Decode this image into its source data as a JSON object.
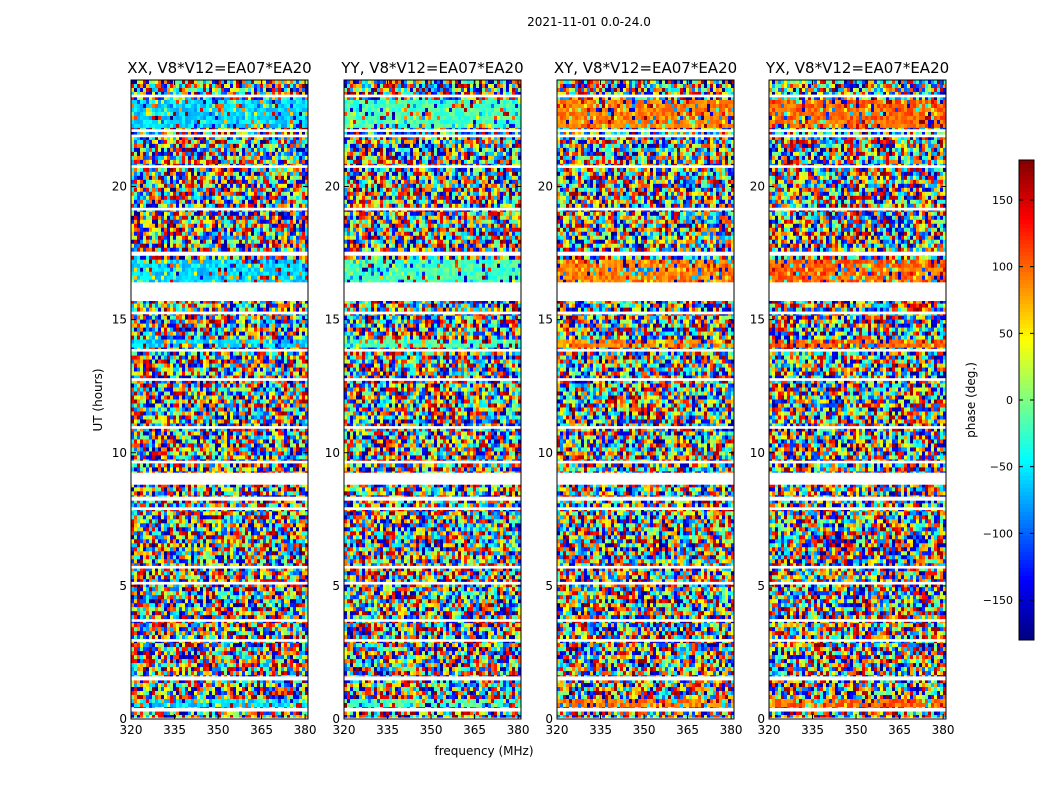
{
  "figure_title": "2021-11-01 0.0-24.0",
  "chart_data": [
    {
      "type": "heatmap",
      "title": "XX, V8*V12=EA07*EA20",
      "xlabel": "frequency (MHz)",
      "ylabel": "UT (hours)",
      "xlim": [
        320,
        381
      ],
      "ylim": [
        0,
        24
      ],
      "x_ticks": [
        320,
        335,
        350,
        365,
        380
      ],
      "y_ticks": [
        0,
        5,
        10,
        15,
        20
      ],
      "dominant_phase_deg": -60
    },
    {
      "type": "heatmap",
      "title": "YY, V8*V12=EA07*EA20",
      "xlabel": "frequency (MHz)",
      "ylabel": "",
      "xlim": [
        320,
        381
      ],
      "ylim": [
        0,
        24
      ],
      "x_ticks": [
        320,
        335,
        350,
        365,
        380
      ],
      "y_ticks": [
        0,
        5,
        10,
        15,
        20
      ],
      "dominant_phase_deg": -20
    },
    {
      "type": "heatmap",
      "title": "XY, V8*V12=EA07*EA20",
      "xlabel": "",
      "ylabel": "",
      "xlim": [
        320,
        381
      ],
      "ylim": [
        0,
        24
      ],
      "x_ticks": [
        320,
        335,
        350,
        365,
        380
      ],
      "y_ticks": [
        0,
        5,
        10,
        15,
        20
      ],
      "dominant_phase_deg": 90
    },
    {
      "type": "heatmap",
      "title": "YX, V8*V12=EA07*EA20",
      "xlabel": "",
      "ylabel": "",
      "xlim": [
        320,
        381
      ],
      "ylim": [
        0,
        24
      ],
      "x_ticks": [
        320,
        335,
        350,
        365,
        380
      ],
      "y_ticks": [
        0,
        5,
        10,
        15,
        20
      ],
      "dominant_phase_deg": 100
    }
  ],
  "colorbar": {
    "label": "phase (deg.)",
    "colormap": "jet",
    "range": [
      -180,
      180
    ],
    "ticks": [
      150,
      100,
      50,
      0,
      -50,
      -100,
      -150
    ],
    "tick_labels": [
      "150",
      "100",
      "50",
      "0",
      "−50",
      "−100",
      "−150"
    ]
  },
  "flagged_time_ranges_hours": [
    [
      0.0,
      0.05
    ],
    [
      0.28,
      0.42
    ],
    [
      1.45,
      1.6
    ],
    [
      2.9,
      3.0
    ],
    [
      3.65,
      3.75
    ],
    [
      5.05,
      5.15
    ],
    [
      5.65,
      5.75
    ],
    [
      7.85,
      7.95
    ],
    [
      8.2,
      8.35
    ],
    [
      8.8,
      9.25
    ],
    [
      9.6,
      9.7
    ],
    [
      10.9,
      11.0
    ],
    [
      12.7,
      12.8
    ],
    [
      13.8,
      13.9
    ],
    [
      15.2,
      15.3
    ],
    [
      15.7,
      16.4
    ],
    [
      17.4,
      17.55
    ],
    [
      19.1,
      19.2
    ],
    [
      20.7,
      20.8
    ],
    [
      21.85,
      21.95
    ],
    [
      22.05,
      22.15
    ],
    [
      23.35,
      23.45
    ]
  ]
}
